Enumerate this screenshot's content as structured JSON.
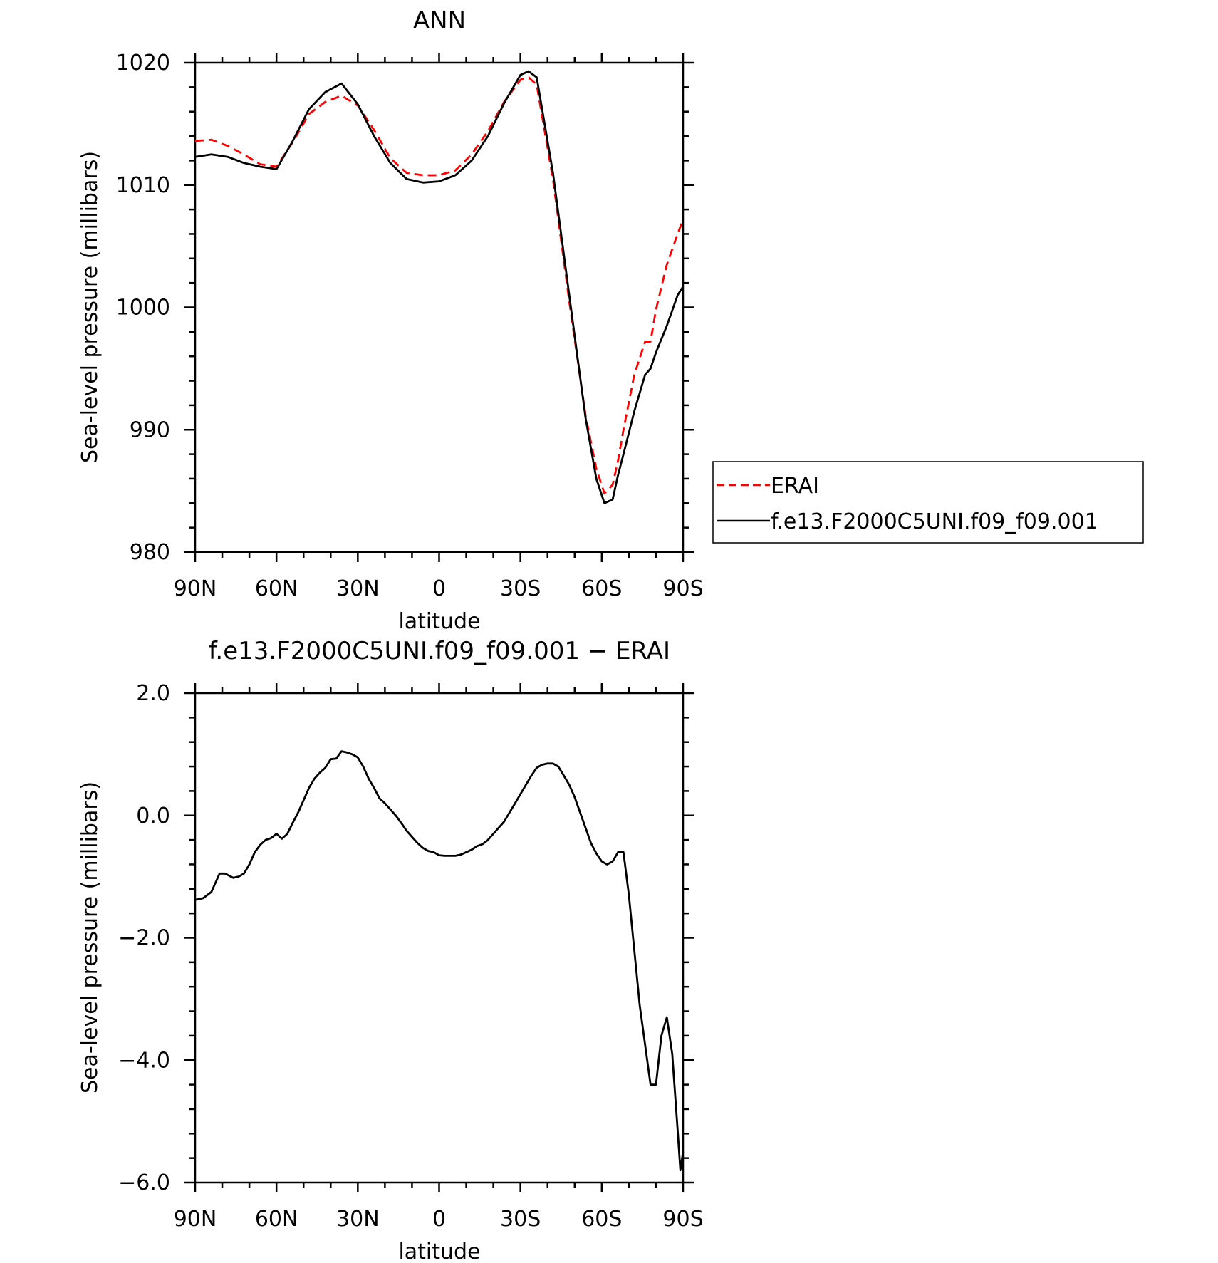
{
  "chart_data": [
    {
      "type": "line",
      "title": "ANN",
      "xlabel": "latitude",
      "ylabel": "Sea-level pressure (millibars)",
      "xlim": [
        90,
        -90
      ],
      "ylim": [
        980,
        1020
      ],
      "xticks": [
        {
          "v": 90,
          "label": "90N"
        },
        {
          "v": 60,
          "label": "60N"
        },
        {
          "v": 30,
          "label": "30N"
        },
        {
          "v": 0,
          "label": "0"
        },
        {
          "v": -30,
          "label": "30S"
        },
        {
          "v": -60,
          "label": "60S"
        },
        {
          "v": -90,
          "label": "90S"
        }
      ],
      "yticks": [
        {
          "v": 980,
          "label": "980"
        },
        {
          "v": 990,
          "label": "990"
        },
        {
          "v": 1000,
          "label": "1000"
        },
        {
          "v": 1010,
          "label": "1010"
        },
        {
          "v": 1020,
          "label": "1020"
        }
      ],
      "legend_position": "right",
      "series": [
        {
          "name": "ERAI",
          "color": "#ff0000",
          "dash": "dashed",
          "x": [
            90,
            84,
            78,
            72,
            66,
            60,
            54,
            48,
            42,
            36,
            30,
            24,
            18,
            12,
            6,
            0,
            -6,
            -12,
            -18,
            -24,
            -30,
            -33,
            -36,
            -42,
            -48,
            -54,
            -58,
            -61,
            -64,
            -66,
            -68,
            -72,
            -76,
            -78,
            -80,
            -84,
            -88,
            -90
          ],
          "y": [
            1013.6,
            1013.7,
            1013.2,
            1012.5,
            1011.7,
            1011.5,
            1013.5,
            1015.8,
            1016.8,
            1017.3,
            1016.5,
            1014.5,
            1012.2,
            1011.0,
            1010.8,
            1010.8,
            1011.2,
            1012.5,
            1014.4,
            1016.8,
            1018.6,
            1018.8,
            1018.2,
            1010.5,
            1000.5,
            991.2,
            986.8,
            984.8,
            985.5,
            987.5,
            990.0,
            994.5,
            997.2,
            997.2,
            999.8,
            1003.5,
            1006.0,
            1007.2
          ]
        },
        {
          "name": "f.e13.F2000C5UNI.f09_f09.001",
          "color": "#000000",
          "dash": "solid",
          "x": [
            90,
            84,
            78,
            72,
            66,
            60,
            54,
            48,
            42,
            36,
            30,
            24,
            18,
            12,
            6,
            0,
            -6,
            -12,
            -18,
            -24,
            -30,
            -33,
            -36,
            -42,
            -48,
            -54,
            -58,
            -61,
            -64,
            -66,
            -68,
            -72,
            -76,
            -78,
            -80,
            -84,
            -88,
            -90
          ],
          "y": [
            1012.3,
            1012.5,
            1012.3,
            1011.8,
            1011.5,
            1011.3,
            1013.6,
            1016.2,
            1017.6,
            1018.3,
            1016.6,
            1014.0,
            1011.8,
            1010.5,
            1010.2,
            1010.3,
            1010.8,
            1012.0,
            1014.0,
            1016.7,
            1019.0,
            1019.3,
            1018.8,
            1011.0,
            1001.0,
            991.0,
            986.0,
            984.0,
            984.3,
            986.3,
            988.0,
            991.5,
            994.5,
            995.0,
            996.3,
            998.5,
            1001.0,
            1001.7
          ]
        }
      ]
    },
    {
      "type": "line",
      "title": "f.e13.F2000C5UNI.f09_f09.001 − ERAI",
      "xlabel": "latitude",
      "ylabel": "Sea-level pressure (millibars)",
      "xlim": [
        90,
        -90
      ],
      "ylim": [
        -6,
        2
      ],
      "xticks": [
        {
          "v": 90,
          "label": "90N"
        },
        {
          "v": 60,
          "label": "60N"
        },
        {
          "v": 30,
          "label": "30N"
        },
        {
          "v": 0,
          "label": "0"
        },
        {
          "v": -30,
          "label": "30S"
        },
        {
          "v": -60,
          "label": "60S"
        },
        {
          "v": -90,
          "label": "90S"
        }
      ],
      "yticks": [
        {
          "v": -6,
          "label": "−6.0"
        },
        {
          "v": -4,
          "label": "−4.0"
        },
        {
          "v": -2,
          "label": "−2.0"
        },
        {
          "v": 0,
          "label": "0.0"
        },
        {
          "v": 2,
          "label": "2.0"
        }
      ],
      "series": [
        {
          "name": "",
          "color": "#000000",
          "dash": "solid",
          "x": [
            90,
            87,
            84,
            81,
            79,
            76,
            74,
            72,
            70,
            68,
            66,
            64,
            62,
            60,
            58,
            56,
            54,
            52,
            50,
            48,
            46,
            44,
            42,
            40,
            38,
            36,
            34,
            32,
            30,
            28,
            26,
            24,
            22,
            20,
            18,
            16,
            14,
            12,
            10,
            8,
            6,
            4,
            2,
            0,
            -2,
            -4,
            -6,
            -8,
            -10,
            -12,
            -14,
            -16,
            -18,
            -20,
            -22,
            -24,
            -26,
            -28,
            -30,
            -32,
            -34,
            -36,
            -38,
            -40,
            -42,
            -44,
            -46,
            -48,
            -50,
            -52,
            -54,
            -56,
            -58,
            -60,
            -62,
            -64,
            -66,
            -68,
            -70,
            -72,
            -74,
            -76,
            -78,
            -80,
            -82,
            -84,
            -86,
            -88,
            -89,
            -90
          ],
          "y": [
            -1.38,
            -1.35,
            -1.25,
            -0.95,
            -0.95,
            -1.02,
            -1.0,
            -0.95,
            -0.8,
            -0.6,
            -0.48,
            -0.4,
            -0.37,
            -0.3,
            -0.38,
            -0.3,
            -0.12,
            0.05,
            0.25,
            0.45,
            0.6,
            0.7,
            0.78,
            0.92,
            0.93,
            1.05,
            1.03,
            1.0,
            0.95,
            0.8,
            0.6,
            0.45,
            0.28,
            0.2,
            0.1,
            0.0,
            -0.12,
            -0.25,
            -0.35,
            -0.45,
            -0.53,
            -0.58,
            -0.6,
            -0.65,
            -0.66,
            -0.66,
            -0.66,
            -0.64,
            -0.6,
            -0.56,
            -0.5,
            -0.47,
            -0.4,
            -0.3,
            -0.2,
            -0.1,
            0.05,
            0.2,
            0.35,
            0.5,
            0.65,
            0.78,
            0.83,
            0.85,
            0.85,
            0.8,
            0.65,
            0.5,
            0.3,
            0.05,
            -0.2,
            -0.45,
            -0.62,
            -0.75,
            -0.8,
            -0.75,
            -0.6,
            -0.6,
            -1.3,
            -2.2,
            -3.1,
            -3.75,
            -4.4,
            -4.4,
            -3.6,
            -3.3,
            -3.9,
            -5.15,
            -5.8,
            -5.5
          ]
        }
      ]
    }
  ]
}
